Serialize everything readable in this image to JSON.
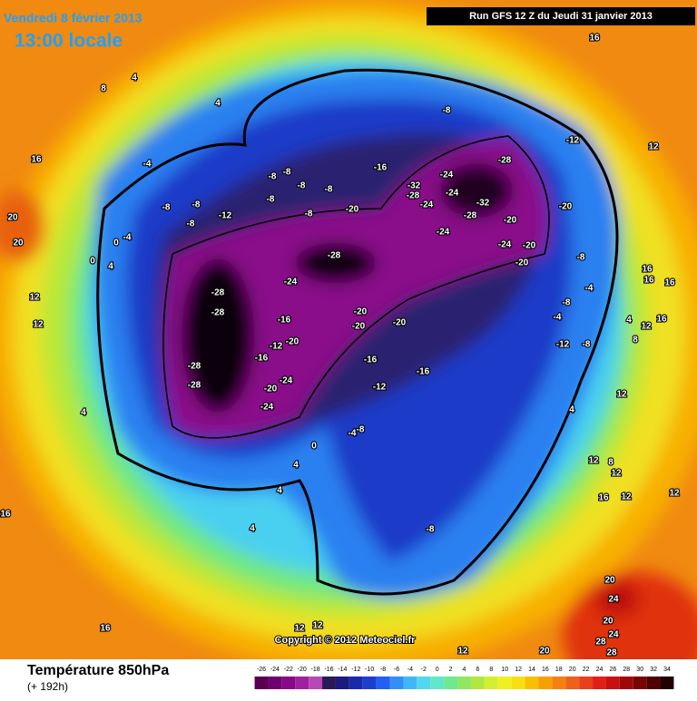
{
  "header": {
    "date": "Vendredi 8 février 2013",
    "time": "13:00 locale",
    "run": "Run GFS 12 Z du Jeudi 31 janvier 2013"
  },
  "footer": {
    "title": "Température 850hPa",
    "lead": "(+ 192h)",
    "copyright": "Copyright © 2012 Meteociel.fr"
  },
  "legend": {
    "ticks": [
      -26,
      -24,
      -22,
      -20,
      -18,
      -16,
      -14,
      -12,
      -10,
      -8,
      -6,
      -4,
      -2,
      0,
      2,
      4,
      6,
      8,
      10,
      12,
      14,
      16,
      18,
      20,
      22,
      24,
      26,
      28,
      30,
      32,
      34
    ],
    "colors": [
      "#5a0050",
      "#700070",
      "#880888",
      "#a020a0",
      "#b848b8",
      "#2a1a5a",
      "#1a1a80",
      "#1a2aa8",
      "#1a40d0",
      "#2060f0",
      "#3090f8",
      "#40b8f8",
      "#50d8f0",
      "#60e8c8",
      "#70e890",
      "#90e860",
      "#b0e840",
      "#d0f030",
      "#f0f020",
      "#f8e010",
      "#f8c000",
      "#f8a000",
      "#f88010",
      "#f06018",
      "#e84018",
      "#e02018",
      "#c81010",
      "#a00808",
      "#780404",
      "#500000",
      "#200000"
    ]
  },
  "contour_labels": [
    -28,
    -28,
    -28,
    -28,
    -28,
    -24,
    -20,
    -20,
    -20,
    -16,
    -16,
    -12,
    -16,
    -12,
    -20,
    -16,
    -20,
    -24,
    -24,
    -8,
    -4,
    0,
    4,
    4,
    4,
    4,
    12,
    12,
    16,
    20,
    20,
    16,
    16,
    12,
    12,
    12,
    20,
    20,
    24,
    28,
    28,
    24,
    20,
    16,
    12,
    12,
    12,
    12,
    8,
    4,
    12,
    8,
    4,
    12,
    16,
    16,
    16,
    16,
    16,
    12,
    -12,
    -12,
    -8,
    -4,
    -8,
    -4,
    -8,
    -20,
    -20,
    -20,
    -24,
    -20,
    -28,
    -28,
    -32,
    -24,
    -24,
    -28,
    -32,
    -24,
    -16,
    -20,
    -24,
    -8,
    -8,
    -8,
    -8,
    -8,
    -8,
    -8,
    -8,
    -8,
    -12,
    -8,
    -4,
    -4,
    0,
    4,
    0,
    8,
    4,
    4,
    -8
  ]
}
